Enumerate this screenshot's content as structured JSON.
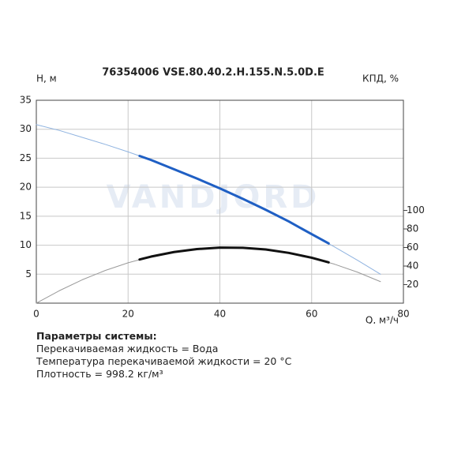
{
  "chart_data": {
    "type": "line",
    "title": "76354006 VSE.80.40.2.H.155.N.5.0D.E",
    "watermark": "VANDJORD",
    "y_label": "H, м",
    "y2_label": "КПД, %",
    "x_label": "Q, м³/ч",
    "xlim": [
      0,
      80
    ],
    "xticks": [
      0,
      20,
      40,
      60,
      80
    ],
    "ylim": [
      0,
      35
    ],
    "yticks": [
      5,
      10,
      15,
      20,
      25,
      30,
      35
    ],
    "y2lim": [
      0,
      218.75
    ],
    "y2ticks": [
      20,
      40,
      60,
      80,
      100
    ],
    "grid": true,
    "series": [
      {
        "color": "#8fb3e0",
        "width": 1,
        "x": [
          0,
          5,
          10,
          15,
          20,
          25,
          30,
          35,
          40,
          45,
          50,
          55,
          60,
          65,
          70,
          75
        ],
        "values": [
          30.8,
          29.8,
          28.6,
          27.4,
          26.1,
          24.7,
          23.1,
          21.5,
          19.8,
          18.0,
          16.1,
          14.1,
          11.9,
          9.7,
          7.4,
          5.0
        ]
      },
      {
        "color": "#1f5fc4",
        "width": 3,
        "x": [
          22.5,
          25,
          30,
          35,
          40,
          45,
          50,
          55,
          60,
          63.7
        ],
        "values": [
          25.4,
          24.7,
          23.1,
          21.5,
          19.8,
          18.0,
          16.1,
          14.1,
          11.9,
          10.3
        ]
      },
      {
        "color": "#9a9a9a",
        "width": 1,
        "axis": "y2",
        "x": [
          0,
          5,
          10,
          15,
          20,
          25,
          30,
          35,
          40,
          45,
          50,
          55,
          60,
          65,
          70,
          75
        ],
        "values": [
          0,
          13.4,
          25.2,
          35.2,
          43.5,
          50.2,
          55.1,
          58.3,
          59.9,
          59.7,
          57.9,
          54.2,
          49.0,
          42.0,
          33.4,
          23.2
        ]
      },
      {
        "color": "#111111",
        "width": 3,
        "axis": "y2",
        "x": [
          22.5,
          25,
          30,
          35,
          40,
          45,
          50,
          55,
          60,
          63.7
        ],
        "values": [
          47.1,
          50.2,
          55.1,
          58.3,
          59.9,
          59.7,
          57.9,
          54.2,
          49.0,
          44.0
        ]
      }
    ]
  },
  "notes": {
    "heading": "Параметры системы:",
    "lines": [
      "Перекачиваемая жидкость = Вода",
      "Температура перекачиваемой жидкости = 20 °C",
      "Плотность = 998.2 кг/м³"
    ]
  }
}
